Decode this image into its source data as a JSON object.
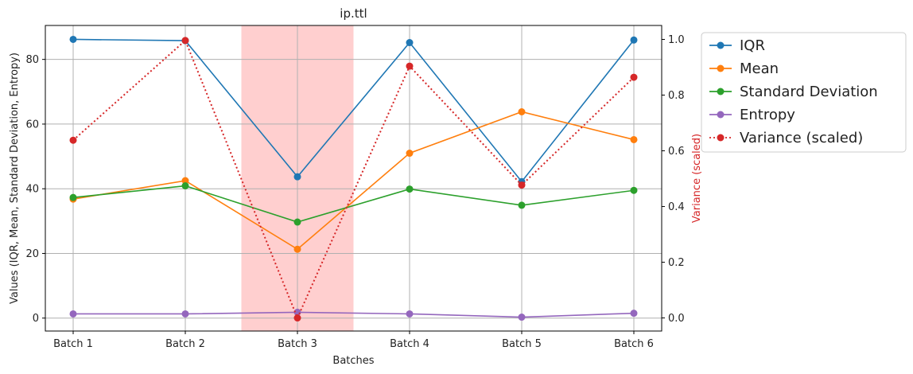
{
  "chart_data": {
    "type": "line",
    "title": "ip.ttl",
    "xlabel": "Batches",
    "ylabel": "Values (IQR, Mean, Standard Deviation, Entropy)",
    "y2label": "Variance (scaled)",
    "categories": [
      "Batch 1",
      "Batch 2",
      "Batch 3",
      "Batch 4",
      "Batch 5",
      "Batch 6"
    ],
    "ylim": [
      -4,
      90.5
    ],
    "y2lim": [
      -0.047,
      1.05
    ],
    "yticks": [
      0,
      20,
      40,
      60,
      80
    ],
    "y2ticks": [
      0.0,
      0.2,
      0.4,
      0.6,
      0.8,
      1.0
    ],
    "y2tick_labels": [
      "0.0",
      "0.2",
      "0.4",
      "0.6",
      "0.8",
      "1.0"
    ],
    "grid": true,
    "legend_position": "outside-right",
    "highlight_span": {
      "from": 1.5,
      "to": 2.5,
      "color": "#ff9f9f"
    },
    "series": [
      {
        "name": "IQR",
        "axis": "left",
        "color": "#1f77b4",
        "style": "solid",
        "values": [
          86.2,
          85.8,
          43.7,
          85.2,
          42.2,
          86.0
        ]
      },
      {
        "name": "Mean",
        "axis": "left",
        "color": "#ff7f0e",
        "style": "solid",
        "values": [
          36.8,
          42.5,
          21.3,
          51.0,
          63.8,
          55.2
        ]
      },
      {
        "name": "Standard Deviation",
        "axis": "left",
        "color": "#2ca02c",
        "style": "solid",
        "values": [
          37.3,
          40.9,
          29.7,
          39.9,
          34.9,
          39.5
        ]
      },
      {
        "name": "Entropy",
        "axis": "left",
        "color": "#9467bd",
        "style": "solid",
        "values": [
          1.3,
          1.3,
          1.8,
          1.3,
          0.3,
          1.5
        ]
      },
      {
        "name": "Variance (scaled)",
        "axis": "right",
        "color": "#d62728",
        "style": "dotted",
        "values": [
          0.638,
          0.996,
          0.0,
          0.904,
          0.477,
          0.864
        ]
      }
    ]
  }
}
